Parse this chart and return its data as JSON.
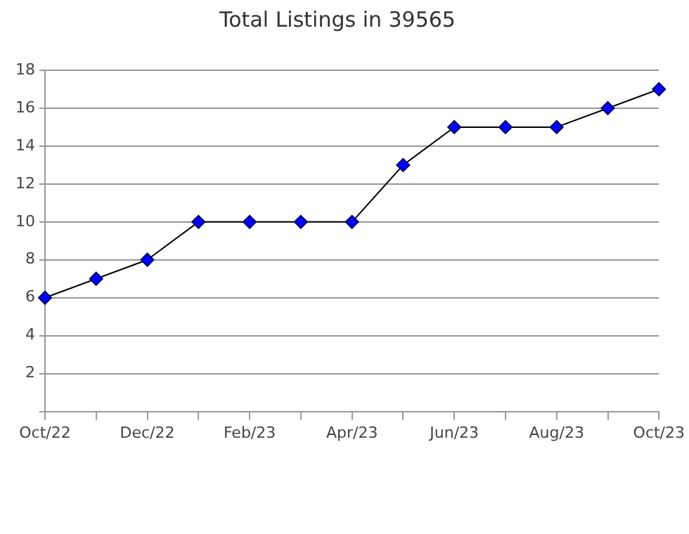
{
  "chart_data": {
    "type": "line",
    "title": "Total Listings in 39565",
    "categories": [
      "Oct/22",
      null,
      "Dec/22",
      null,
      "Feb/23",
      null,
      "Apr/23",
      null,
      "Jun/23",
      null,
      "Aug/23",
      null,
      "Oct/23"
    ],
    "series": [
      {
        "color": "#0000ff",
        "values": [
          6,
          7,
          8,
          10,
          10,
          10,
          10,
          13,
          15,
          15,
          15,
          16,
          17
        ]
      }
    ],
    "ylim": [
      0,
      18
    ],
    "yticks": [
      {
        "value": 0,
        "label": null
      },
      2,
      4,
      6,
      8,
      10,
      12,
      14,
      16,
      18
    ],
    "grid": "y",
    "legend": false,
    "marker": "diamond",
    "line_style": "solid"
  }
}
